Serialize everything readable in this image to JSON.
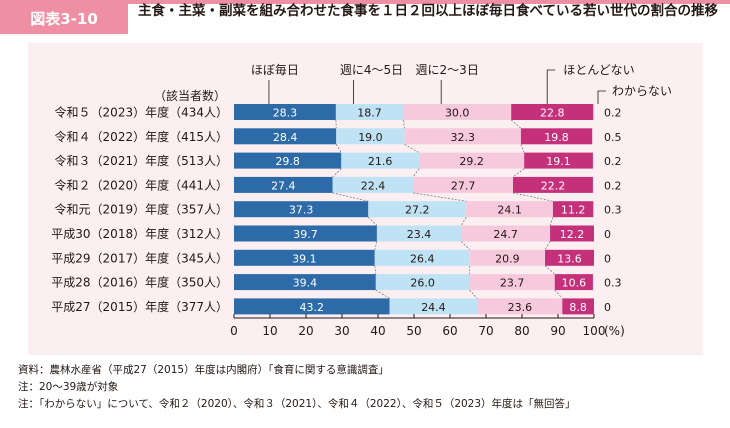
{
  "figure": {
    "label": "図表3-10",
    "title": "主食・主菜・副菜を組み合わせた食事を１日２回以上ほぼ毎日食べている若い世代の割合の推移"
  },
  "chart_data": {
    "type": "stacked-bar-horizontal",
    "respondents_label": "（該当者数）",
    "categories": [
      "令和５（2023）年度（434人）",
      "令和４（2022）年度（415人）",
      "令和３（2021）年度（513人）",
      "令和２（2020）年度（441人）",
      "令和元（2019）年度（357人）",
      "平成30（2018）年度（312人）",
      "平成29（2017）年度（345人）",
      "平成28（2016）年度（350人）",
      "平成27（2015）年度（377人）"
    ],
    "series": [
      {
        "name": "ほぼ毎日",
        "color": "#2c6aa8",
        "label_color": "#ffffff",
        "values": [
          28.3,
          28.4,
          29.8,
          27.4,
          37.3,
          39.7,
          39.1,
          39.4,
          43.2
        ]
      },
      {
        "name": "週に4～5日",
        "color": "#bfe3f5",
        "label_color": "#231815",
        "values": [
          18.7,
          19.0,
          21.6,
          22.4,
          27.2,
          23.4,
          26.4,
          26.0,
          24.4
        ]
      },
      {
        "name": "週に2～3日",
        "color": "#f7c9dc",
        "label_color": "#231815",
        "values": [
          30.0,
          32.3,
          29.2,
          27.7,
          24.1,
          24.7,
          20.9,
          23.7,
          23.6
        ]
      },
      {
        "name": "ほとんどない",
        "color": "#c4317a",
        "label_color": "#ffffff",
        "values": [
          22.8,
          19.8,
          19.1,
          22.2,
          11.2,
          12.2,
          13.6,
          10.6,
          8.8
        ]
      },
      {
        "name": "わからない",
        "color": "#ffffff",
        "label_color": "#231815",
        "values": [
          0.2,
          0.5,
          0.2,
          0.2,
          0.3,
          0,
          0,
          0.3,
          0
        ]
      }
    ],
    "value_labels": [
      [
        "28.3",
        "18.7",
        "30.0",
        "22.8",
        "0.2"
      ],
      [
        "28.4",
        "19.0",
        "32.3",
        "19.8",
        "0.5"
      ],
      [
        "29.8",
        "21.6",
        "29.2",
        "19.1",
        "0.2"
      ],
      [
        "27.4",
        "22.4",
        "27.7",
        "22.2",
        "0.2"
      ],
      [
        "37.3",
        "27.2",
        "24.1",
        "11.2",
        "0.3"
      ],
      [
        "39.7",
        "23.4",
        "24.7",
        "12.2",
        "0"
      ],
      [
        "39.1",
        "26.4",
        "20.9",
        "13.6",
        "0"
      ],
      [
        "39.4",
        "26.0",
        "23.7",
        "10.6",
        "0.3"
      ],
      [
        "43.2",
        "24.4",
        "23.6",
        "8.8",
        "0"
      ]
    ],
    "x_ticks": [
      "0",
      "10",
      "20",
      "30",
      "40",
      "50",
      "60",
      "70",
      "80",
      "90",
      "100"
    ],
    "x_unit": "(%)",
    "xlim": [
      0,
      100
    ],
    "grid": false,
    "legend_position": "top"
  },
  "notes": [
    "資料：農林水産省（平成27（2015）年度は内閣府）「食育に関する意識調査」",
    "注：20～39歳が対象",
    "注：「わからない」について、令和２（2020）、令和３（2021）、令和４（2022）、令和５（2023）年度は「無回答」"
  ]
}
